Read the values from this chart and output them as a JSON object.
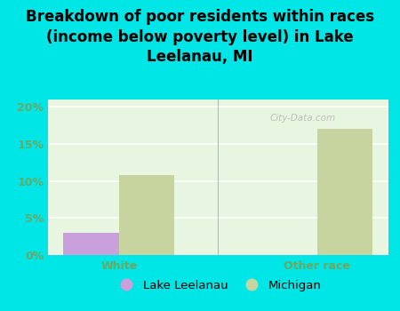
{
  "title": "Breakdown of poor residents within races\n(income below poverty level) in Lake\nLeelanau, MI",
  "categories": [
    "White",
    "Other race"
  ],
  "lake_leelanau_values": [
    3.0,
    0.0
  ],
  "michigan_values": [
    10.8,
    17.0
  ],
  "lake_leelanau_color": "#c9a0dc",
  "michigan_color": "#c8d4a0",
  "background_color": "#00e5e5",
  "plot_bg_gradient_top": "#e8f5e8",
  "plot_bg_gradient_bottom": "#f8fff8",
  "ylim": [
    0,
    21
  ],
  "yticks": [
    0,
    5,
    10,
    15,
    20
  ],
  "ytick_labels": [
    "0%",
    "5%",
    "10%",
    "15%",
    "20%"
  ],
  "legend_labels": [
    "Lake Leelanau",
    "Michigan"
  ],
  "bar_width": 0.28,
  "title_fontsize": 12,
  "tick_color": "#66aa66",
  "watermark": "City-Data.com"
}
